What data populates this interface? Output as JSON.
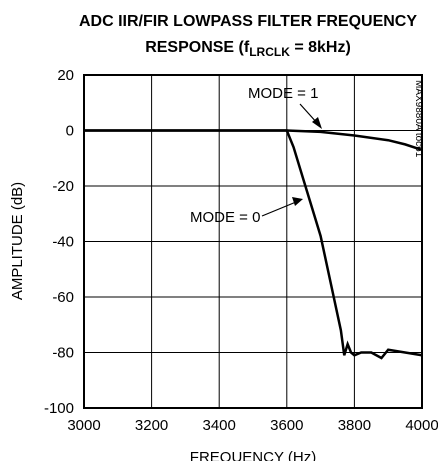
{
  "chart_data": {
    "type": "line",
    "title": [
      "ADC IIR/FIR LOWPASS FILTER FREQUENCY",
      [
        "RESPONSE (f",
        "LRCLK",
        " = 8kHz)"
      ]
    ],
    "xlabel": "FREQUENCY (Hz)",
    "ylabel": "AMPLITUDE (dB)",
    "note": "MAX9880A toc61",
    "xlim": [
      3000,
      4000
    ],
    "xticks": [
      3000,
      3200,
      3400,
      3600,
      3800,
      4000
    ],
    "ylim": [
      -100,
      20
    ],
    "yticks": [
      20,
      0,
      -20,
      -40,
      -60,
      -80,
      -100
    ],
    "grid": true,
    "series": [
      {
        "name": "MODE = 1",
        "color": "#000000",
        "x": [
          3000,
          3600,
          3700,
          3800,
          3900,
          3950,
          4000
        ],
        "values": [
          0,
          0,
          -0.5,
          -1.8,
          -3.5,
          -5,
          -7
        ]
      },
      {
        "name": "MODE = 0",
        "color": "#000000",
        "x": [
          3000,
          3600,
          3620,
          3650,
          3680,
          3700,
          3730,
          3760,
          3770,
          3780,
          3790,
          3800,
          3820,
          3850,
          3880,
          3900,
          3950,
          4000
        ],
        "values": [
          0,
          0,
          -6,
          -18,
          -30,
          -38,
          -55,
          -72,
          -81,
          -77,
          -80,
          -81,
          -80,
          -80,
          -82,
          -79,
          -80,
          -81
        ]
      }
    ]
  }
}
